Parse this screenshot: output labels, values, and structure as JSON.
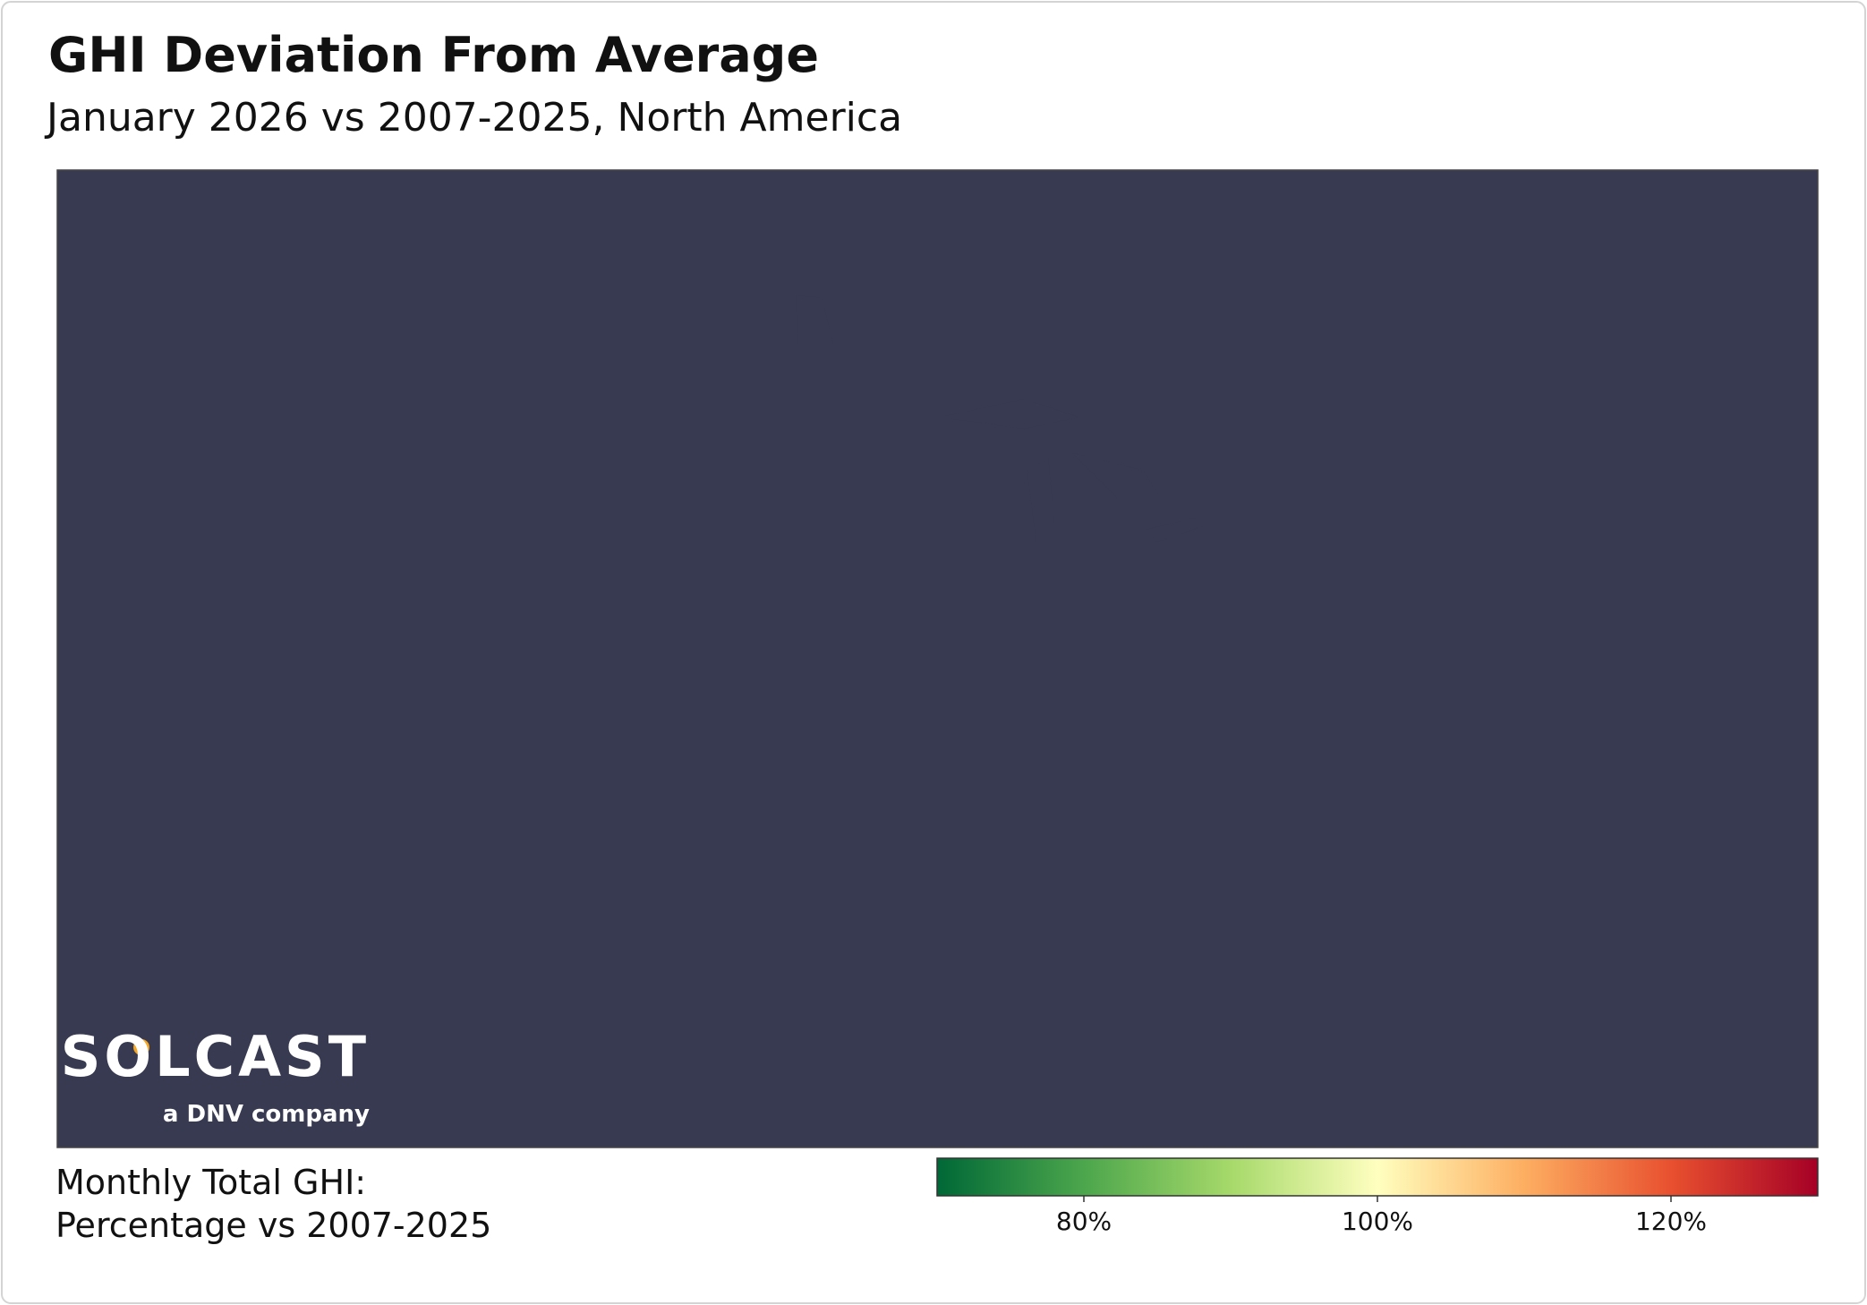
{
  "header": {
    "title": "GHI Deviation From Average",
    "subtitle": "January 2026 vs 2007-2025, North America"
  },
  "logo": {
    "name": "SOLCAST",
    "tagline": "a DNV company"
  },
  "legend": {
    "title_lines": [
      "Monthly Total GHI:",
      "Percentage vs 2007-2025"
    ],
    "lim": [
      70,
      130
    ],
    "ticks": [
      {
        "value": 80,
        "label": "80%"
      },
      {
        "value": 100,
        "label": "100%"
      },
      {
        "value": 120,
        "label": "120%"
      }
    ],
    "colormap": [
      "#006837",
      "#4ca64c",
      "#a6d96a",
      "#ffffbf",
      "#fdae61",
      "#e8502f",
      "#a50026"
    ]
  }
}
